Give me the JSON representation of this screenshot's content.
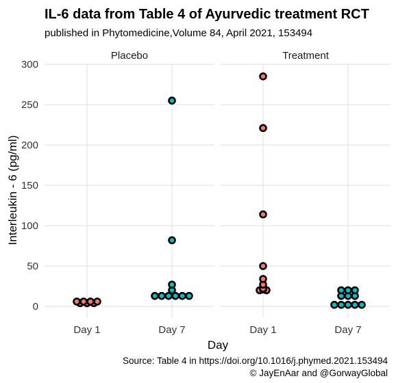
{
  "title": "IL-6 data from Table 4 of Ayurvedic treatment RCT",
  "subtitle": "published in Phytomedicine,Volume 84, April 2021, 153494",
  "caption_line1": "Source: Table 4 in  https://doi.org/10.1016/j.phymed.2021.153494",
  "caption_line2": "© JayEnAar and @GorwayGlobal",
  "chart_data": {
    "type": "scatter",
    "style": "dotplot",
    "xlabel": "Day",
    "ylabel": "Interleukin - 6 (pg/ml)",
    "categories": [
      "Day 1",
      "Day 7"
    ],
    "ylim": [
      -15,
      300
    ],
    "yticks": [
      0,
      50,
      100,
      150,
      200,
      250,
      300
    ],
    "grid": true,
    "colors": {
      "Day 1": "#F8766D",
      "Day 7": "#00BFC4",
      "outline": "#000000"
    },
    "panels": [
      {
        "name": "Placebo",
        "series": [
          {
            "category": "Day 1",
            "values": [
              4,
              4,
              6,
              6,
              6,
              6,
              4
            ]
          },
          {
            "category": "Day 7",
            "values": [
              13,
              13,
              13,
              13,
              13,
              13,
              20,
              27,
              82,
              255
            ]
          }
        ]
      },
      {
        "name": "Treatment",
        "series": [
          {
            "category": "Day 1",
            "values": [
              20,
              20,
              21,
              22,
              27,
              34,
              50,
              114,
              221,
              285
            ]
          },
          {
            "category": "Day 7",
            "values": [
              2,
              2,
              2,
              2,
              2,
              13,
              13,
              13,
              20,
              20,
              20
            ]
          }
        ]
      }
    ]
  }
}
